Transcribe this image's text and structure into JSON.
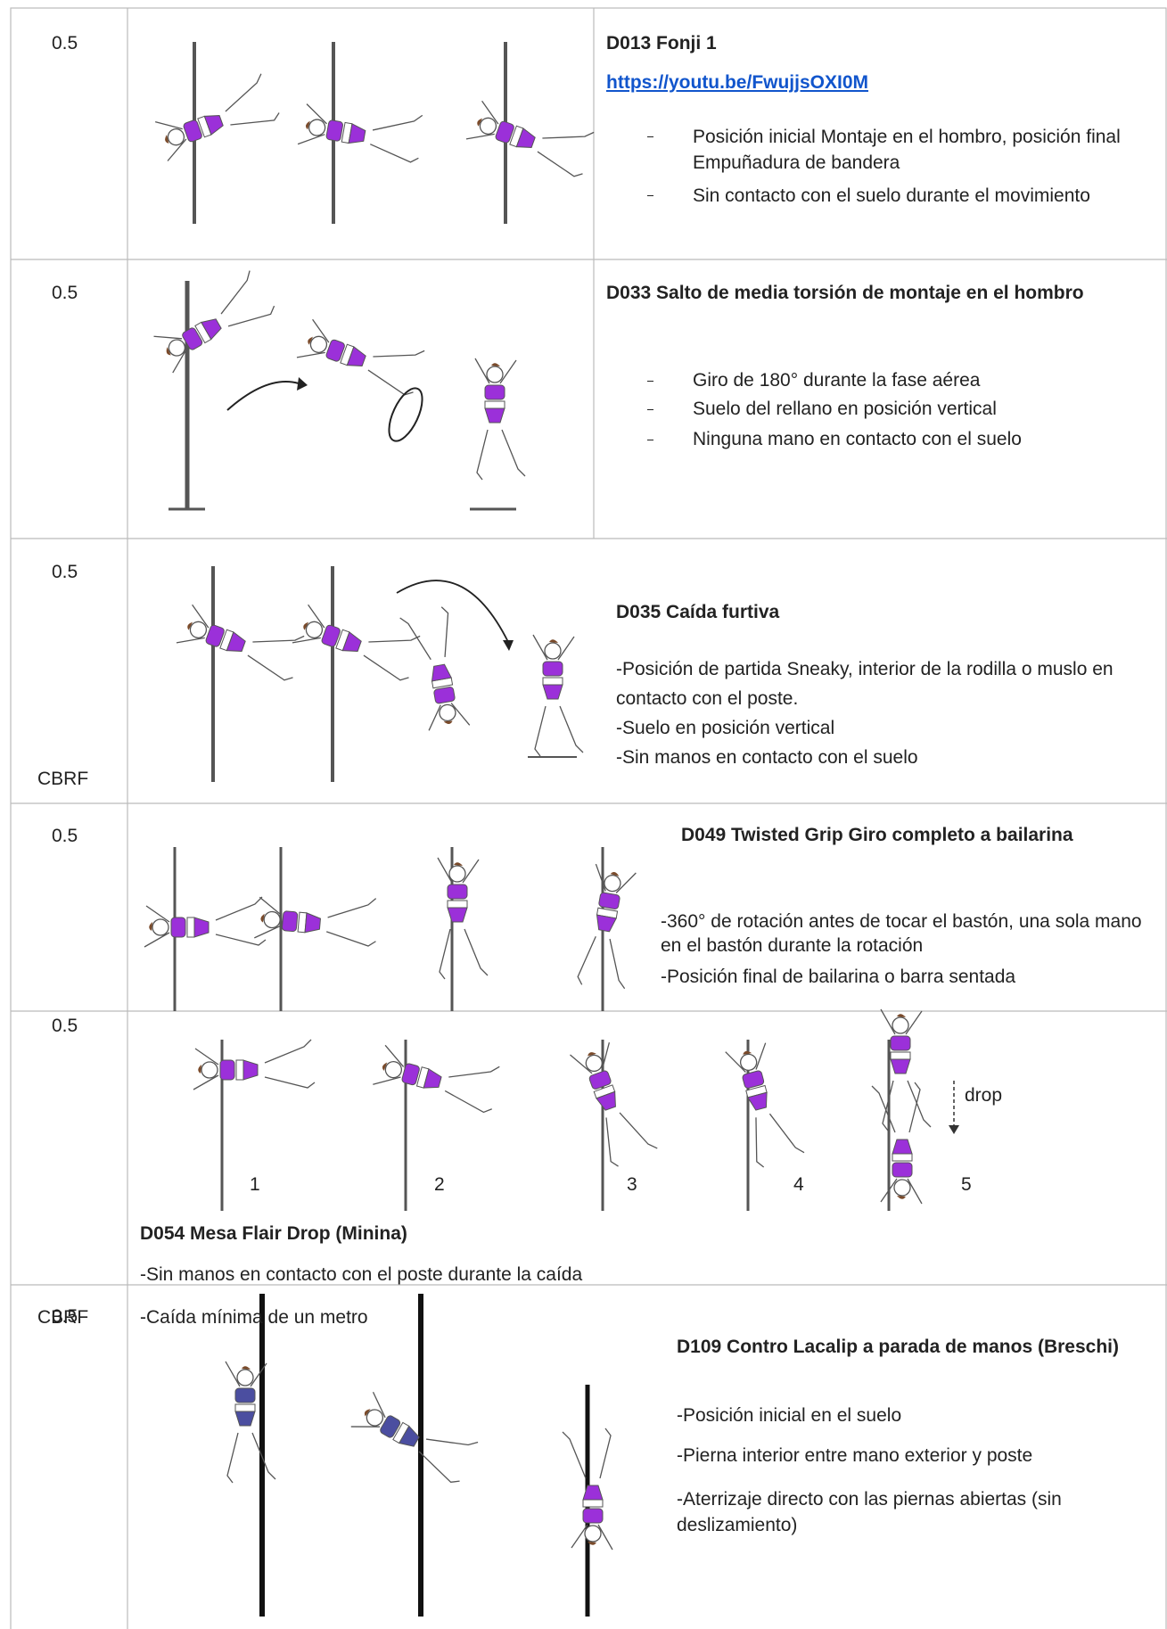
{
  "rows": [
    {
      "score": "0.5",
      "title": "D013 Fonji 1",
      "link": "https://youtu.be/FwujjsOXI0M",
      "items": [
        "Posición inicial Montaje en el hombro, posición final Empuñadura de bandera",
        "Sin contacto con el suelo durante el movimiento"
      ]
    },
    {
      "score": "0.5",
      "title": "D033 Salto de media torsión de montaje en el hombro",
      "items": [
        "Giro de 180° durante la fase aérea",
        "Suelo del rellano en posición vertical",
        "Ninguna mano en contacto con el suelo"
      ]
    },
    {
      "score": "0.5",
      "note": "CBRF",
      "title": "D035 Caída furtiva",
      "items": [
        "-Posición de partida Sneaky, interior de la rodilla o muslo en contacto con el poste.",
        "-Suelo en posición vertical",
        "-Sin manos en contacto con el suelo"
      ]
    },
    {
      "score": "0.5",
      "title": "D049 Twisted Grip Giro completo a bailarina",
      "items": [
        "-360° de rotación antes de tocar el bastón, una sola mano en el bastón durante la rotación",
        "-Posición final de bailarina o barra sentada"
      ]
    },
    {
      "score": "0.5",
      "note": "CBRF",
      "title": "D054 Mesa Flair Drop (Minina)",
      "items": [
        "-Sin manos en contacto con el poste durante la caída",
        "-Caída mínima de un metro"
      ],
      "figure_labels": [
        "1",
        "2",
        "3",
        "4",
        "5",
        "drop"
      ]
    },
    {
      "score": "0.5",
      "title": "D109 Contro Lacalip a parada de manos (Breschi)",
      "items": [
        "-Posición inicial en el suelo",
        "-Pierna interior entre mano exterior y poste",
        "-Aterrizaje directo con las piernas abiertas (sin deslizamiento)"
      ]
    }
  ]
}
